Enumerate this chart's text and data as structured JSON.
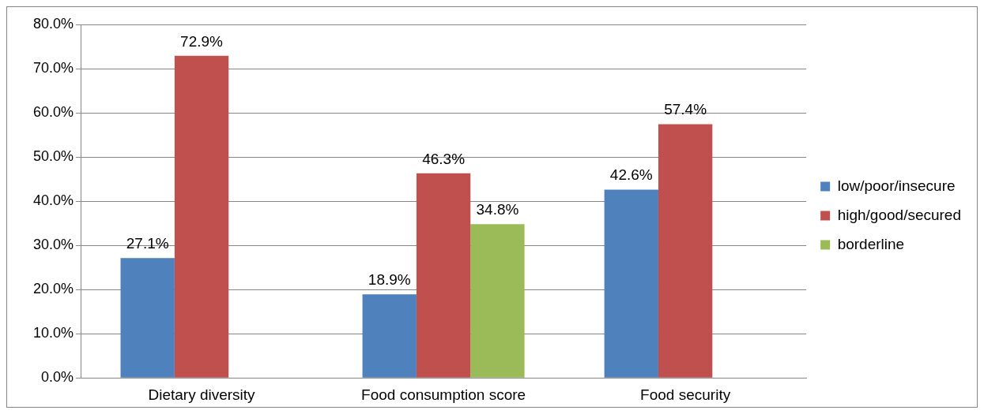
{
  "chart_data": {
    "type": "bar",
    "categories": [
      "Dietary diversity",
      "Food consumption score",
      "Food security"
    ],
    "series": [
      {
        "name": "low/poor/insecure",
        "color": "#4f81bd",
        "values": [
          27.1,
          18.9,
          42.6
        ],
        "value_labels": [
          "27.1%",
          "18.9%",
          "42.6%"
        ]
      },
      {
        "name": "high/good/secured",
        "color": "#c0504d",
        "values": [
          72.9,
          46.3,
          57.4
        ],
        "value_labels": [
          "72.9%",
          "46.3%",
          "57.4%"
        ]
      },
      {
        "name": "borderline",
        "color": "#9bbb59",
        "values": [
          null,
          34.8,
          null
        ],
        "value_labels": [
          null,
          "34.8%",
          null
        ]
      }
    ],
    "ylim": [
      0,
      80
    ],
    "yticks": [
      {
        "value": 0,
        "label": "0.0%"
      },
      {
        "value": 10,
        "label": "10.0%"
      },
      {
        "value": 20,
        "label": "20.0%"
      },
      {
        "value": 30,
        "label": "30.0%"
      },
      {
        "value": 40,
        "label": "40.0%"
      },
      {
        "value": 50,
        "label": "50.0%"
      },
      {
        "value": 60,
        "label": "60.0%"
      },
      {
        "value": 70,
        "label": "70.0%"
      },
      {
        "value": 80,
        "label": "80.0%"
      }
    ],
    "grid": "y",
    "legend": "right"
  }
}
